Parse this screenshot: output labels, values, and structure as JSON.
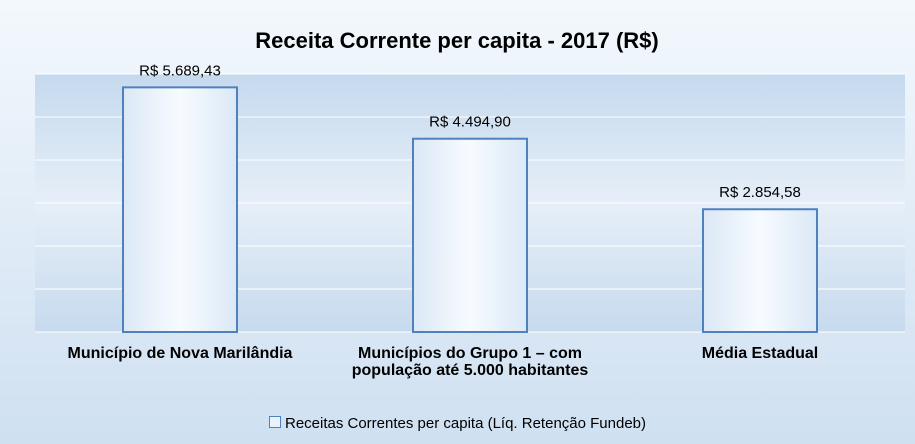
{
  "chart_data": {
    "type": "bar",
    "title": "Receita Corrente per capita - 2017 (R$)",
    "categories": [
      "Município de Nova Marilândia",
      "Municípios do Grupo 1 – com população até 5.000 habitantes",
      "Média Estadual"
    ],
    "series": [
      {
        "name": "Receitas Correntes per capita (Líq. Retenção Fundeb)",
        "color": "#4f81bd",
        "values": [
          5689.43,
          4494.9,
          2854.58
        ],
        "value_labels": [
          "R$ 5.689,43",
          "R$ 4.494,90",
          "R$ 2.854,58"
        ]
      }
    ],
    "ylim": [
      0,
      6000
    ],
    "yticks": [
      0,
      1000,
      2000,
      3000,
      4000,
      5000,
      6000
    ],
    "grid": true,
    "legend": "bottom"
  }
}
